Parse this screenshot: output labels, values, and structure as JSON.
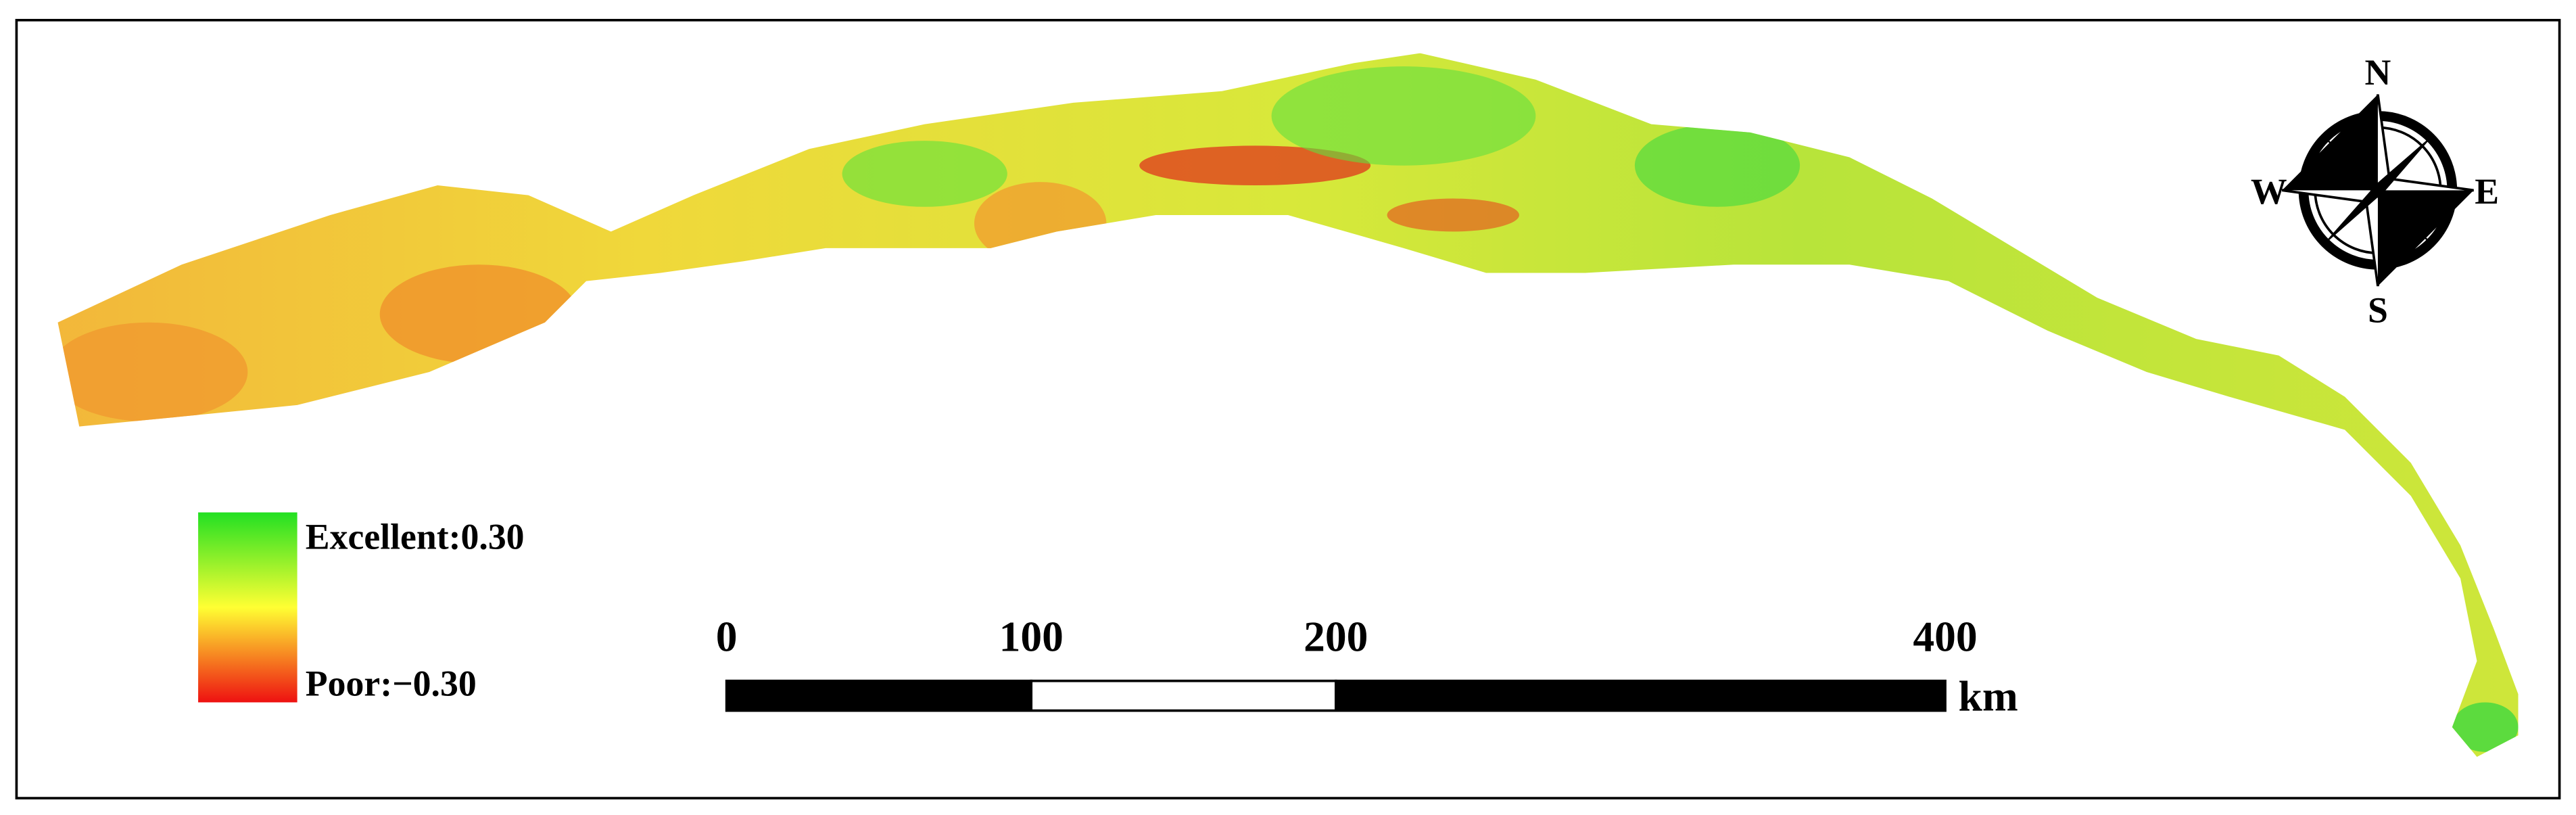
{
  "legend": {
    "high_label": "Excellent:0.30",
    "low_label": "Poor:−0.30"
  },
  "scale_bar": {
    "ticks": [
      0,
      100,
      200,
      400
    ],
    "unit": "km"
  },
  "compass": {
    "north": "N",
    "south": "S",
    "west": "W",
    "east": "E"
  }
}
